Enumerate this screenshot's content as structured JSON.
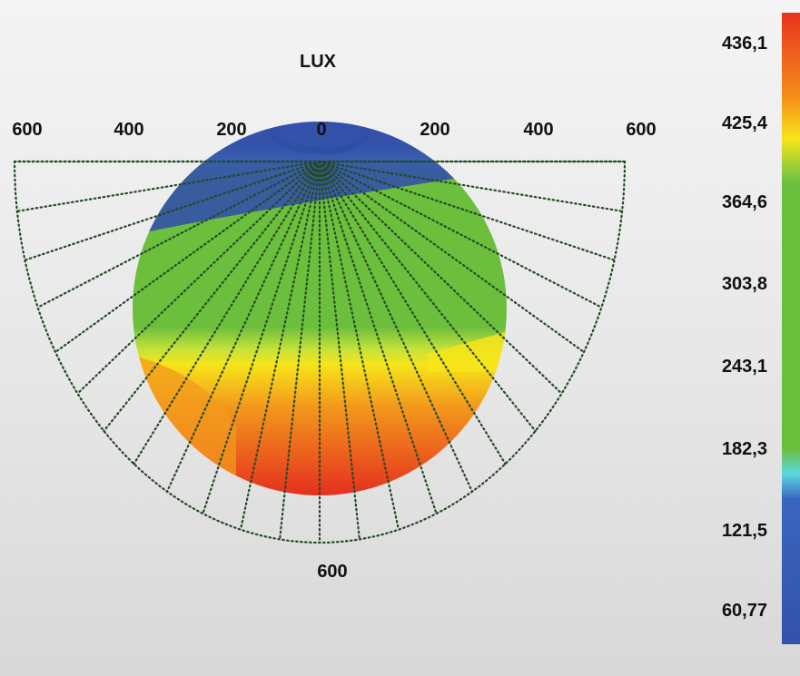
{
  "chart_data": {
    "type": "heatmap",
    "title": "LUX",
    "x_tick_labels": [
      "600",
      "400",
      "200",
      "0",
      "200",
      "400",
      "600"
    ],
    "bottom_label": "600",
    "colorbar": {
      "tick_labels": [
        "436,1",
        "425,4",
        "364,6",
        "303,8",
        "243,1",
        "182,3",
        "121,5",
        "60,77"
      ],
      "ticks": [
        436.1,
        425.4,
        364.6,
        303.8,
        243.1,
        182.3,
        121.5,
        60.77
      ],
      "colors": {
        "high": "#e8321e",
        "orange": "#f08a1a",
        "yellow": "#f5e61a",
        "green": "#6cbf3c",
        "cyan": "#5cd8e0",
        "blue": "#3451a8"
      }
    },
    "field": {
      "shape": "circle",
      "bands": [
        {
          "level": "blue",
          "range_top": 0.0
        },
        {
          "level": "cyan",
          "range_top": 0.08
        },
        {
          "level": "green",
          "range_top": 0.12
        },
        {
          "level": "yellow",
          "range_top": 0.6
        },
        {
          "level": "orange",
          "range_top": 0.68
        },
        {
          "level": "high",
          "range_top": 0.85
        }
      ]
    },
    "grid": "polar-dotted"
  }
}
